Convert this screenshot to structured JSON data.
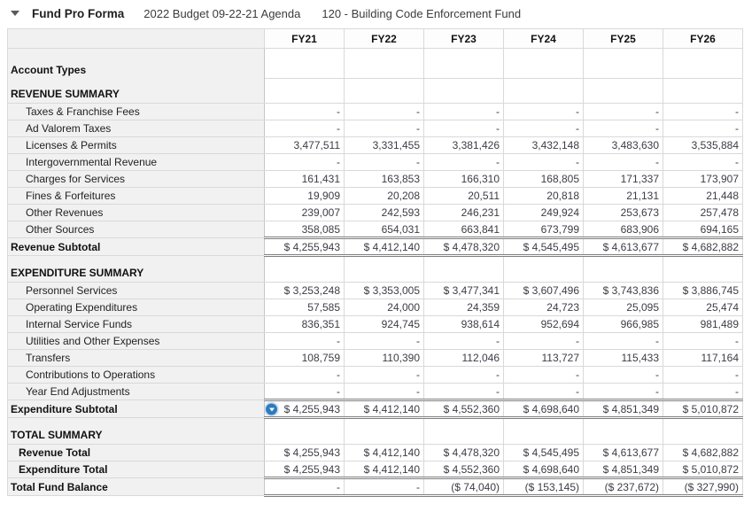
{
  "title_bar": {
    "collapse_icon": "caret-down",
    "title": "Fund Pro Forma",
    "subtitle_budget": "2022 Budget 09-22-21 Agenda",
    "subtitle_fund": "120 - Building Code Enforcement Fund"
  },
  "colors": {
    "expand_icon_blue": "#2e7bbf",
    "label_column_bg": "#f1f1f1",
    "rule_line_dark": "#7f7f7f",
    "grid_line_light": "#d9d9d9"
  },
  "table": {
    "columns": [
      "FY21",
      "FY22",
      "FY23",
      "FY24",
      "FY25",
      "FY26"
    ],
    "rows": [
      {
        "label": "Account Types",
        "type": "header-tall",
        "values": [
          "",
          "",
          "",
          "",
          "",
          ""
        ]
      },
      {
        "label": "REVENUE SUMMARY",
        "type": "header-sub",
        "values": [
          "",
          "",
          "",
          "",
          "",
          ""
        ]
      },
      {
        "label": "Taxes & Franchise Fees",
        "type": "item",
        "values": [
          "-",
          "-",
          "-",
          "-",
          "-",
          "-"
        ]
      },
      {
        "label": "Ad Valorem Taxes",
        "type": "item",
        "values": [
          "-",
          "-",
          "-",
          "-",
          "-",
          "-"
        ]
      },
      {
        "label": "Licenses & Permits",
        "type": "item",
        "values": [
          "3,477,511",
          "3,331,455",
          "3,381,426",
          "3,432,148",
          "3,483,630",
          "3,535,884"
        ]
      },
      {
        "label": "Intergovernmental Revenue",
        "type": "item",
        "values": [
          "-",
          "-",
          "-",
          "-",
          "-",
          "-"
        ]
      },
      {
        "label": "Charges for Services",
        "type": "item",
        "values": [
          "161,431",
          "163,853",
          "166,310",
          "168,805",
          "171,337",
          "173,907"
        ]
      },
      {
        "label": "Fines & Forfeitures",
        "type": "item",
        "values": [
          "19,909",
          "20,208",
          "20,511",
          "20,818",
          "21,131",
          "21,448"
        ]
      },
      {
        "label": "Other Revenues",
        "type": "item",
        "values": [
          "239,007",
          "242,593",
          "246,231",
          "249,924",
          "253,673",
          "257,478"
        ]
      },
      {
        "label": "Other Sources",
        "type": "item",
        "values": [
          "358,085",
          "654,031",
          "663,841",
          "673,799",
          "683,906",
          "694,165"
        ]
      },
      {
        "label": "Revenue Subtotal",
        "type": "subtotal",
        "values": [
          "$ 4,255,943",
          "$ 4,412,140",
          "$ 4,478,320",
          "$ 4,545,495",
          "$ 4,613,677",
          "$ 4,682,882"
        ]
      },
      {
        "label": "",
        "type": "blank",
        "values": [
          "",
          "",
          "",
          "",
          "",
          ""
        ]
      },
      {
        "label": "EXPENDITURE SUMMARY",
        "type": "section",
        "after_blank": true,
        "values": [
          "",
          "",
          "",
          "",
          "",
          ""
        ]
      },
      {
        "label": "Personnel Services",
        "type": "item",
        "values": [
          "$ 3,253,248",
          "$ 3,353,005",
          "$ 3,477,341",
          "$ 3,607,496",
          "$ 3,743,836",
          "$ 3,886,745"
        ]
      },
      {
        "label": "Operating Expenditures",
        "type": "item",
        "values": [
          "57,585",
          "24,000",
          "24,359",
          "24,723",
          "25,095",
          "25,474"
        ]
      },
      {
        "label": "Internal Service Funds",
        "type": "item",
        "values": [
          "836,351",
          "924,745",
          "938,614",
          "952,694",
          "966,985",
          "981,489"
        ]
      },
      {
        "label": "Utilities and Other Expenses",
        "type": "item",
        "values": [
          "-",
          "-",
          "-",
          "-",
          "-",
          "-"
        ]
      },
      {
        "label": "Transfers",
        "type": "item",
        "values": [
          "108,759",
          "110,390",
          "112,046",
          "113,727",
          "115,433",
          "117,164"
        ]
      },
      {
        "label": "Contributions to Operations",
        "type": "item",
        "values": [
          "-",
          "-",
          "-",
          "-",
          "-",
          "-"
        ]
      },
      {
        "label": "Year End Adjustments",
        "type": "item",
        "values": [
          "-",
          "-",
          "-",
          "-",
          "-",
          "-"
        ]
      },
      {
        "label": "Expenditure Subtotal",
        "type": "subtotal",
        "icon": "expand-chevron-down",
        "values": [
          "$ 4,255,943",
          "$ 4,412,140",
          "$ 4,552,360",
          "$ 4,698,640",
          "$ 4,851,349",
          "$ 5,010,872"
        ]
      },
      {
        "label": "",
        "type": "blank",
        "values": [
          "",
          "",
          "",
          "",
          "",
          ""
        ]
      },
      {
        "label": "TOTAL SUMMARY",
        "type": "section",
        "after_blank": true,
        "values": [
          "",
          "",
          "",
          "",
          "",
          ""
        ]
      },
      {
        "label": "Revenue Total",
        "type": "total-item",
        "values": [
          "$ 4,255,943",
          "$ 4,412,140",
          "$ 4,478,320",
          "$ 4,545,495",
          "$ 4,613,677",
          "$ 4,682,882"
        ]
      },
      {
        "label": "Expenditure Total",
        "type": "total-item",
        "dark_bottom": true,
        "values": [
          "$ 4,255,943",
          "$ 4,412,140",
          "$ 4,552,360",
          "$ 4,698,640",
          "$ 4,851,349",
          "$ 5,010,872"
        ]
      },
      {
        "label": "Total Fund Balance",
        "type": "grand-total",
        "values": [
          "-",
          "-",
          "($ 74,040)",
          "($ 153,145)",
          "($ 237,672)",
          "($ 327,990)"
        ]
      }
    ]
  }
}
